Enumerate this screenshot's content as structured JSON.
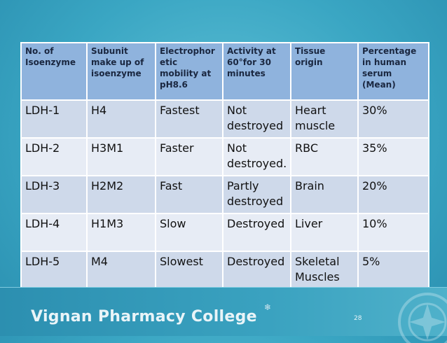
{
  "table": {
    "headers": [
      "No. of Isoenzyme",
      "Subunit make up of isoenzyme",
      "Electrophor etic mobility at pH8.6",
      "Activity at 60°for 30 minutes",
      "Tissue origin",
      "Percentage in human serum (Mean)"
    ],
    "rows": [
      [
        "LDH-1",
        "H4",
        "Fastest",
        "Not destroyed",
        "Heart muscle",
        "30%"
      ],
      [
        "LDH-2",
        "H3M1",
        "Faster",
        "Not destroyed.",
        "RBC",
        "35%"
      ],
      [
        "LDH-3",
        "H2M2",
        "Fast",
        "Partly destroyed",
        "Brain",
        "20%"
      ],
      [
        "LDH-4",
        "H1M3",
        "Slow",
        "Destroyed",
        "Liver",
        "10%"
      ],
      [
        "LDH-5",
        "M4",
        "Slowest",
        "Destroyed",
        "Skeletal Muscles",
        "5%"
      ]
    ]
  },
  "footer": {
    "college_name": "Vignan Pharmacy College",
    "page_number": "28"
  }
}
